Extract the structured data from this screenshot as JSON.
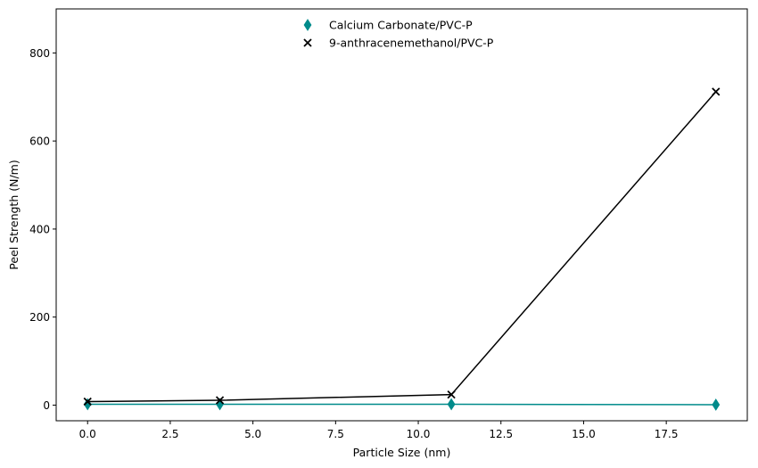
{
  "chart_data": {
    "type": "line",
    "title": "",
    "xlabel": "Particle Size (nm)",
    "ylabel": "Peel Strength (N/m)",
    "xlim": [
      -0.95,
      19.95
    ],
    "ylim": [
      -35.5,
      900
    ],
    "x_ticks": [
      0.0,
      2.5,
      5.0,
      7.5,
      10.0,
      12.5,
      15.0,
      17.5
    ],
    "x_tick_labels": [
      "0.0",
      "2.5",
      "5.0",
      "7.5",
      "10.0",
      "12.5",
      "15.0",
      "17.5"
    ],
    "y_ticks": [
      0,
      200,
      400,
      600,
      800
    ],
    "y_tick_labels": [
      "0",
      "200",
      "400",
      "600",
      "800"
    ],
    "grid": false,
    "legend_position": "upper-center",
    "series": [
      {
        "name": "Calcium Carbonate/PVC-P",
        "color": "#008b8b",
        "marker": "thin-diamond",
        "x": [
          0,
          4,
          11,
          19
        ],
        "y": [
          2,
          2,
          2,
          1
        ]
      },
      {
        "name": "9-anthracenemethanol/PVC-P",
        "color": "#000000",
        "marker": "x",
        "x": [
          0,
          4,
          11,
          19
        ],
        "y": [
          8,
          11,
          24,
          712
        ]
      }
    ]
  }
}
